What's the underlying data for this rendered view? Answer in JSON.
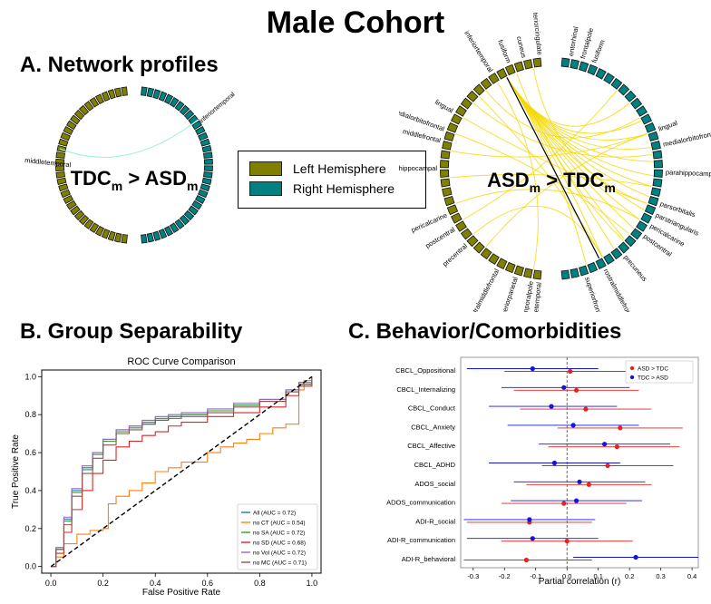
{
  "title": "Male Cohort",
  "panels": {
    "a_title": "A. Network profiles",
    "b_title": "B. Group Separability",
    "c_title": "C. Behavior/Comorbidities"
  },
  "legend": {
    "left": {
      "label": "Left Hemisphere",
      "color": "#808000"
    },
    "right": {
      "label": "Right Hemisphere",
      "color": "#008080"
    }
  },
  "network_left": {
    "center_label_main": "TDC",
    "center_label_sub": "m",
    "center_label_op": " > ",
    "center_label_main2": "ASD",
    "center_label_sub2": "m",
    "node_labels": [
      "middletemporal",
      "inferiortemporal"
    ],
    "edge_color": "#98f0e0"
  },
  "network_right": {
    "center_label_main": "ASD",
    "center_label_sub": "m",
    "center_label_op": " > ",
    "center_label_main2": "TDC",
    "center_label_sub2": "m",
    "edge_color": "#f5d800",
    "node_labels": [
      "caudalanteriorcingulate",
      "cuneus",
      "fusiform",
      "inferiortemporal",
      "lingual",
      "medialorbitofrontal",
      "middlefrontal",
      "parahippocampal",
      "pericalcarine",
      "postcentral",
      "precentral",
      "rostralmiddlefrontal",
      "superiorparietal",
      "temporalpole",
      "transversetemporal",
      "entorhinal",
      "frontalpole",
      "fusiform",
      "lingual",
      "medialorbitofrontal",
      "parahippocampal",
      "parsorbitalis",
      "parstriangularis",
      "pericalcarine",
      "postcentral",
      "precuneus",
      "rostralmiddlefrontal",
      "superiorfrontal"
    ]
  },
  "chart_data": [
    {
      "type": "line",
      "title": "ROC Curve Comparison",
      "xlabel": "False Positive Rate",
      "ylabel": "True Positive Rate",
      "xlim": [
        0,
        1
      ],
      "ylim": [
        0,
        1
      ],
      "x_ticks": [
        "0.0",
        "0.2",
        "0.4",
        "0.6",
        "0.8",
        "1.0"
      ],
      "y_ticks": [
        "0.0",
        "0.2",
        "0.4",
        "0.6",
        "0.8",
        "1.0"
      ],
      "legend_position": "lower-right",
      "chance_line": {
        "x": [
          0,
          1
        ],
        "y": [
          0,
          1
        ]
      },
      "series": [
        {
          "name": "All (AUC = 0.72)",
          "color": "#1f77b4",
          "x": [
            0,
            0.02,
            0.05,
            0.08,
            0.12,
            0.16,
            0.2,
            0.25,
            0.3,
            0.35,
            0.4,
            0.45,
            0.5,
            0.6,
            0.7,
            0.8,
            0.9,
            0.95,
            1
          ],
          "y": [
            0,
            0.1,
            0.25,
            0.4,
            0.52,
            0.6,
            0.67,
            0.72,
            0.74,
            0.76,
            0.78,
            0.79,
            0.8,
            0.82,
            0.85,
            0.88,
            0.93,
            0.97,
            1
          ]
        },
        {
          "name": "no CT (AUC = 0.54)",
          "color": "#ff7f0e",
          "x": [
            0,
            0.02,
            0.05,
            0.1,
            0.15,
            0.2,
            0.22,
            0.25,
            0.3,
            0.35,
            0.4,
            0.45,
            0.5,
            0.55,
            0.6,
            0.65,
            0.7,
            0.75,
            0.8,
            0.85,
            0.9,
            0.95,
            0.97,
            1
          ],
          "y": [
            0,
            0.05,
            0.12,
            0.17,
            0.19,
            0.2,
            0.33,
            0.37,
            0.4,
            0.44,
            0.5,
            0.52,
            0.55,
            0.55,
            0.6,
            0.63,
            0.65,
            0.67,
            0.7,
            0.73,
            0.75,
            0.93,
            0.98,
            1
          ]
        },
        {
          "name": "no SA (AUC = 0.72)",
          "color": "#2ca02c",
          "x": [
            0,
            0.02,
            0.05,
            0.08,
            0.12,
            0.16,
            0.2,
            0.25,
            0.3,
            0.35,
            0.4,
            0.45,
            0.5,
            0.6,
            0.7,
            0.8,
            0.9,
            0.95,
            1
          ],
          "y": [
            0,
            0.09,
            0.24,
            0.39,
            0.51,
            0.59,
            0.66,
            0.71,
            0.73,
            0.75,
            0.77,
            0.79,
            0.8,
            0.82,
            0.85,
            0.87,
            0.92,
            0.96,
            1
          ]
        },
        {
          "name": "no SD (AUC = 0.68)",
          "color": "#d62728",
          "x": [
            0,
            0.02,
            0.05,
            0.08,
            0.12,
            0.16,
            0.2,
            0.25,
            0.3,
            0.35,
            0.4,
            0.45,
            0.5,
            0.6,
            0.7,
            0.8,
            0.9,
            0.95,
            1
          ],
          "y": [
            0,
            0.07,
            0.18,
            0.3,
            0.4,
            0.49,
            0.56,
            0.63,
            0.66,
            0.69,
            0.71,
            0.74,
            0.76,
            0.79,
            0.81,
            0.84,
            0.9,
            0.95,
            1
          ]
        },
        {
          "name": "no Vol (AUC = 0.72)",
          "color": "#9467bd",
          "x": [
            0,
            0.02,
            0.05,
            0.08,
            0.12,
            0.16,
            0.2,
            0.25,
            0.3,
            0.35,
            0.4,
            0.45,
            0.5,
            0.6,
            0.7,
            0.8,
            0.9,
            0.95,
            1
          ],
          "y": [
            0,
            0.1,
            0.26,
            0.41,
            0.53,
            0.6,
            0.67,
            0.72,
            0.74,
            0.77,
            0.79,
            0.8,
            0.81,
            0.83,
            0.86,
            0.88,
            0.93,
            0.97,
            1
          ]
        },
        {
          "name": "no MC (AUC = 0.71)",
          "color": "#8c564b",
          "x": [
            0,
            0.02,
            0.05,
            0.08,
            0.12,
            0.16,
            0.2,
            0.25,
            0.3,
            0.35,
            0.4,
            0.45,
            0.5,
            0.6,
            0.7,
            0.8,
            0.9,
            0.95,
            1
          ],
          "y": [
            0,
            0.09,
            0.22,
            0.37,
            0.49,
            0.57,
            0.64,
            0.7,
            0.72,
            0.75,
            0.77,
            0.78,
            0.79,
            0.81,
            0.84,
            0.87,
            0.92,
            0.96,
            1
          ]
        }
      ]
    },
    {
      "type": "scatter",
      "xlabel": "Partial correlation (r)",
      "xlim": [
        -0.34,
        0.42
      ],
      "x_ticks": [
        "-0.3",
        "-0.2",
        "-0.1",
        "0.0",
        "0.1",
        "0.2",
        "0.3",
        "0.4"
      ],
      "reference_line_x": 0,
      "legend_position": "top-right",
      "categories": [
        "CBCL_Oppositional",
        "CBCL_Internalizing",
        "CBCL_Conduct",
        "CBCL_Anxiety",
        "CBCL_Affective",
        "CBCL_ADHD",
        "ADOS_social",
        "ADOS_communication",
        "ADI-R_social",
        "ADI-R_communication",
        "ADI-R_behavioral"
      ],
      "series": [
        {
          "name": "ASD > TDC",
          "color": "#e8231a",
          "values": [
            0.01,
            0.03,
            0.06,
            0.17,
            0.16,
            0.13,
            0.07,
            -0.01,
            -0.12,
            0.0,
            -0.13
          ],
          "ci_low": [
            -0.2,
            -0.17,
            -0.15,
            -0.03,
            -0.06,
            -0.08,
            -0.13,
            -0.21,
            -0.32,
            -0.21,
            -0.33
          ],
          "ci_high": [
            0.22,
            0.23,
            0.27,
            0.37,
            0.36,
            0.34,
            0.27,
            0.19,
            0.08,
            0.21,
            0.08
          ]
        },
        {
          "name": "TDC > ASD",
          "color": "#1414e0",
          "values": [
            -0.11,
            -0.01,
            -0.05,
            0.02,
            0.12,
            -0.04,
            0.04,
            0.03,
            -0.12,
            -0.11,
            0.22
          ],
          "ci_low": [
            -0.32,
            -0.21,
            -0.25,
            -0.19,
            -0.09,
            -0.25,
            -0.17,
            -0.18,
            -0.33,
            -0.32,
            0.02
          ],
          "ci_high": [
            0.1,
            0.2,
            0.16,
            0.23,
            0.33,
            0.17,
            0.25,
            0.24,
            0.09,
            0.1,
            0.42
          ]
        }
      ]
    }
  ]
}
